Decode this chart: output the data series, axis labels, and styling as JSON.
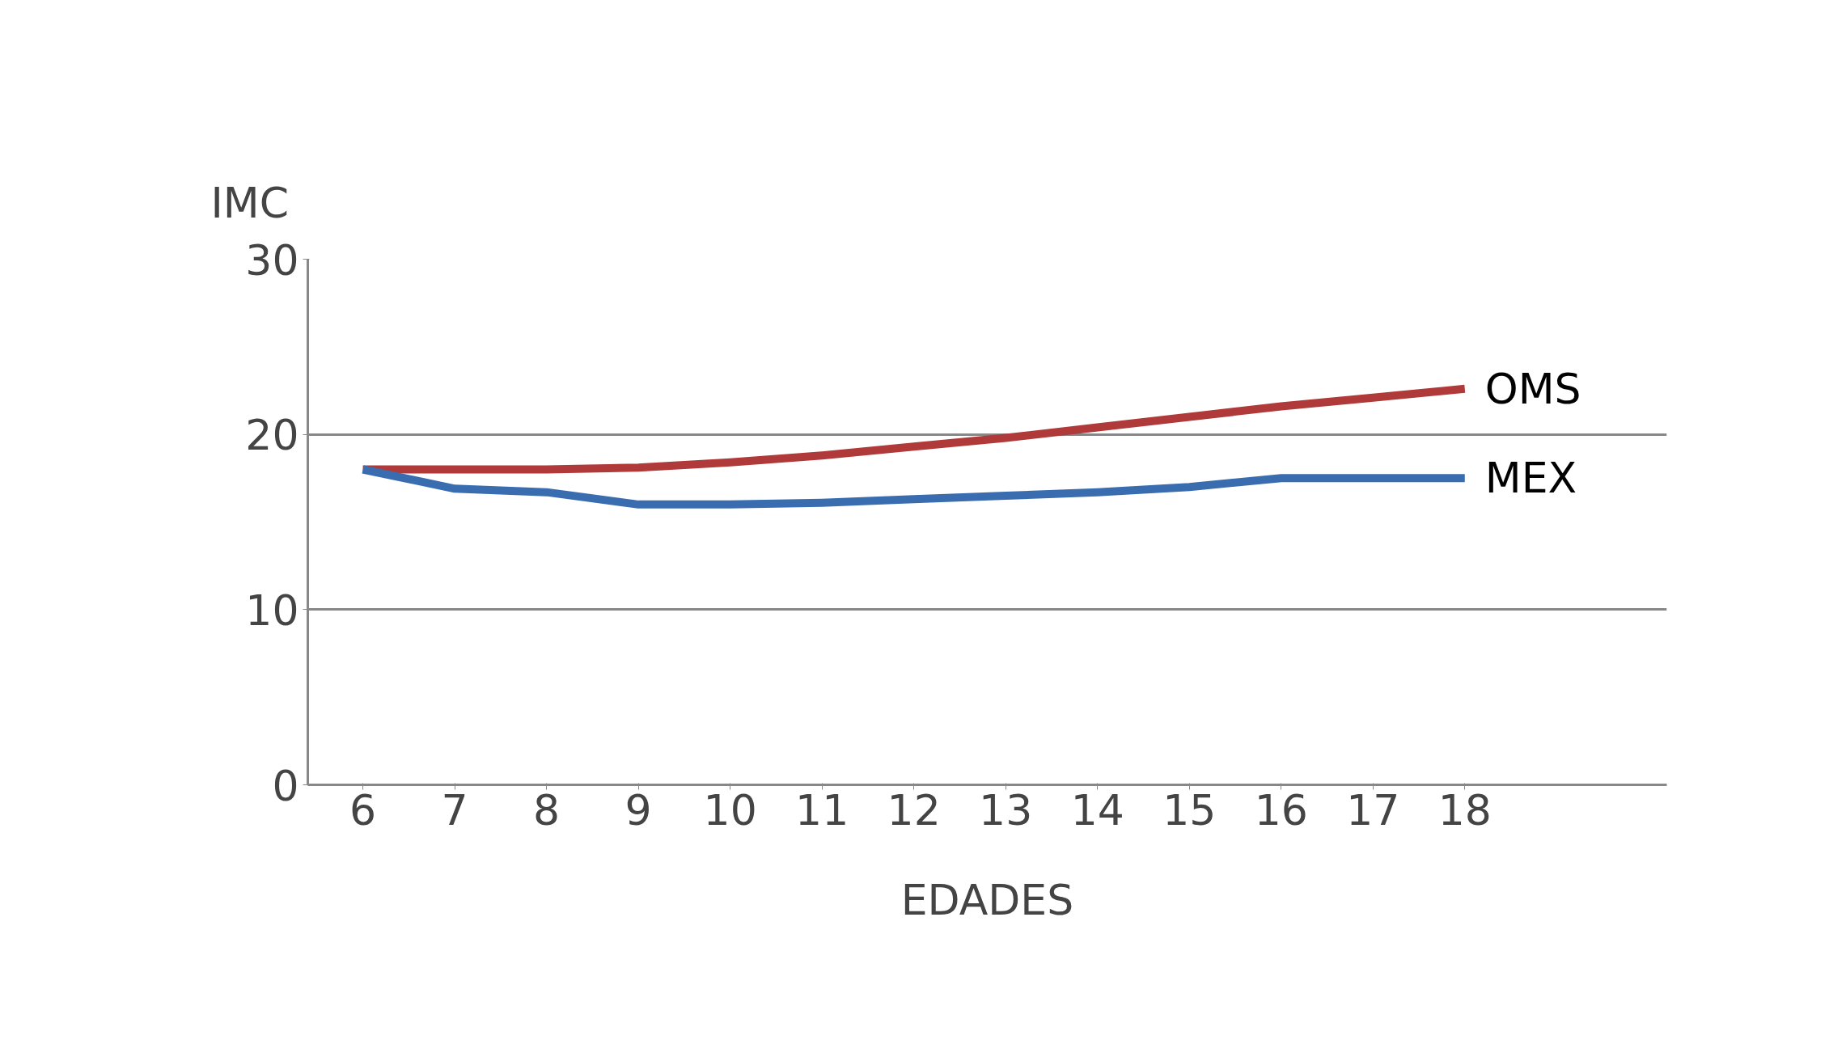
{
  "chart_data": {
    "type": "line",
    "xlabel": "EDADES",
    "ylabel": "IMC",
    "categories": [
      "6",
      "7",
      "8",
      "9",
      "10",
      "11",
      "12",
      "13",
      "14",
      "15",
      "16",
      "17",
      "18"
    ],
    "series": [
      {
        "name": "OMS",
        "color": "#b03a3a",
        "values": [
          18.0,
          18.0,
          18.0,
          18.1,
          18.4,
          18.8,
          19.3,
          19.8,
          20.4,
          21.0,
          21.6,
          22.1,
          22.6
        ]
      },
      {
        "name": "MEX",
        "color": "#3a6db0",
        "values": [
          18.0,
          16.9,
          16.7,
          16.0,
          16.0,
          16.1,
          16.3,
          16.5,
          16.7,
          17.0,
          17.5,
          17.5,
          17.5
        ]
      }
    ],
    "ylim": [
      0,
      30
    ],
    "yticks": [
      0,
      10,
      20,
      30
    ],
    "grid": "y",
    "marker": "none",
    "line_style": "solid"
  }
}
